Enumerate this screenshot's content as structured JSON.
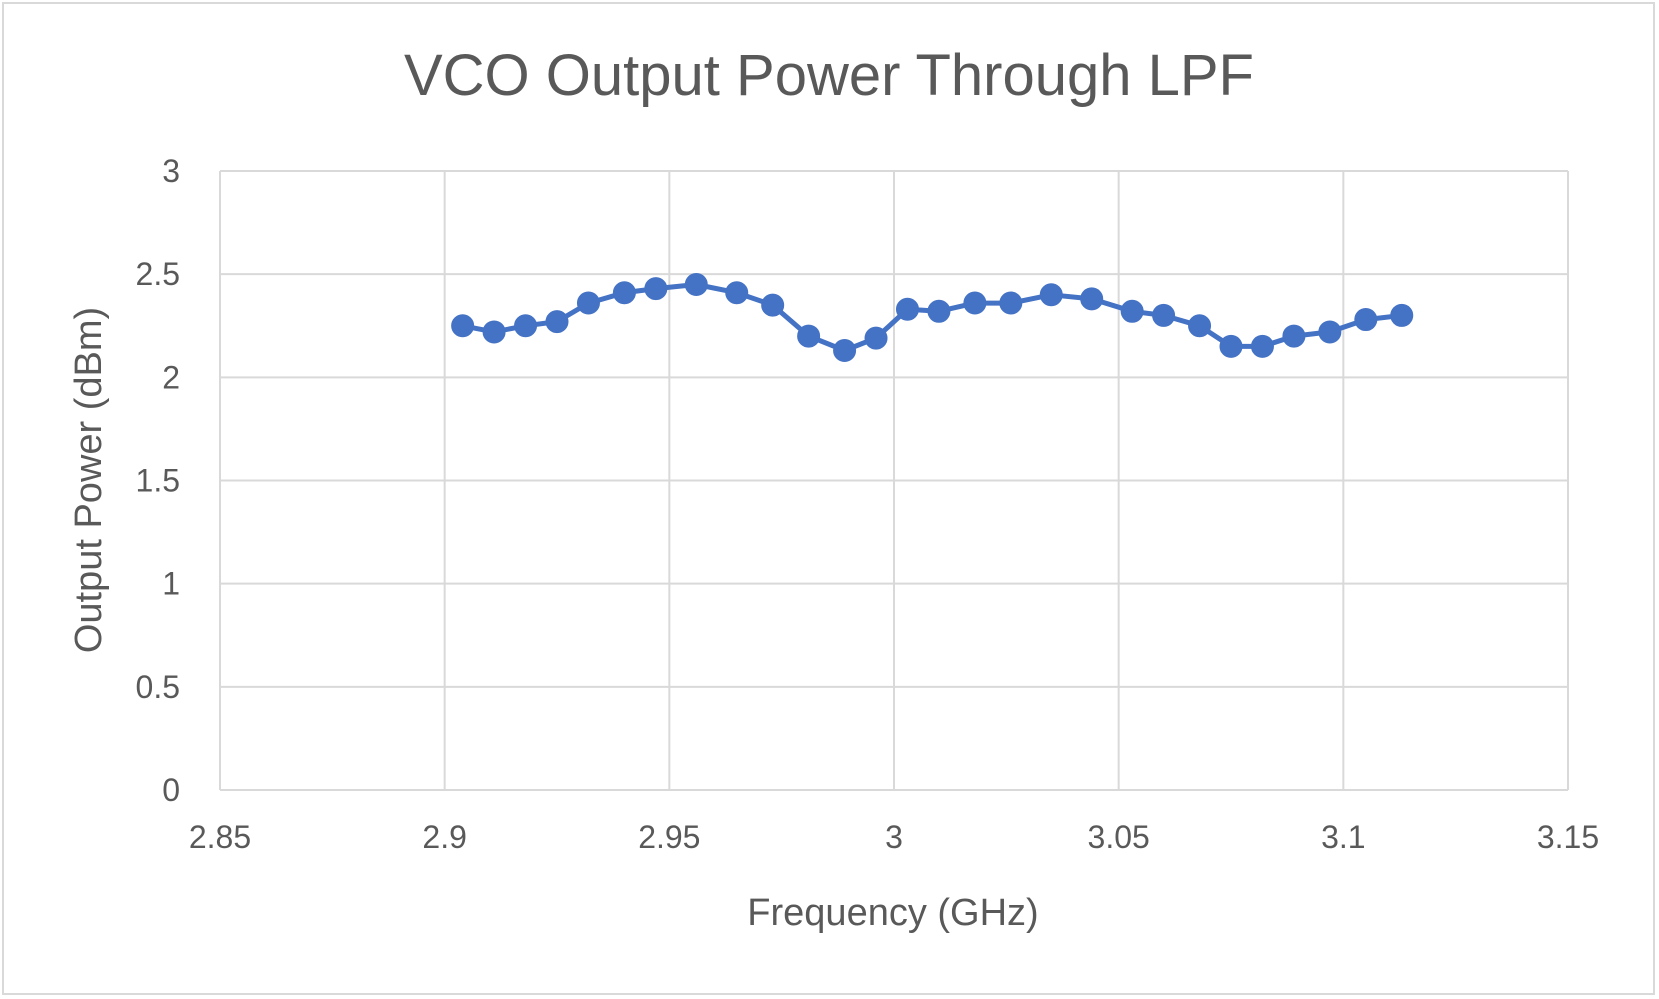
{
  "chart_data": {
    "type": "line",
    "title": "VCO Output Power Through LPF",
    "xlabel": "Frequency (GHz)",
    "ylabel": "Output Power (dBm)",
    "xlim": [
      2.85,
      3.15
    ],
    "ylim": [
      0,
      3
    ],
    "x_ticks": [
      "2.85",
      "2.9",
      "2.95",
      "3",
      "3.05",
      "3.1",
      "3.15"
    ],
    "y_ticks": [
      "0",
      "0.5",
      "1",
      "1.5",
      "2",
      "2.5",
      "3"
    ],
    "grid": true,
    "legend": "none",
    "series_color": "#4472c4",
    "series": [
      {
        "x": [
          2.904,
          2.911,
          2.918,
          2.925,
          2.932,
          2.94,
          2.947,
          2.956,
          2.965,
          2.973,
          2.981,
          2.989,
          2.996,
          3.003,
          3.01,
          3.018,
          3.026,
          3.035,
          3.044,
          3.053,
          3.06,
          3.068,
          3.075,
          3.082,
          3.089,
          3.097,
          3.105,
          3.113
        ],
        "y": [
          2.25,
          2.22,
          2.25,
          2.27,
          2.36,
          2.41,
          2.43,
          2.45,
          2.41,
          2.35,
          2.2,
          2.13,
          2.19,
          2.33,
          2.32,
          2.36,
          2.36,
          2.4,
          2.38,
          2.32,
          2.3,
          2.25,
          2.15,
          2.15,
          2.2,
          2.22,
          2.28,
          2.3
        ]
      }
    ]
  }
}
